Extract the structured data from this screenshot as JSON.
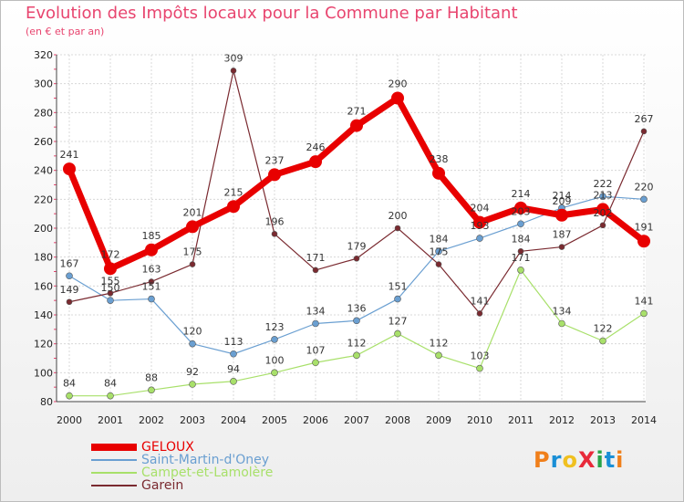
{
  "header": {
    "title": "Evolution des Impôts locaux pour la Commune par Habitant",
    "subtitle": "(en € et par an)"
  },
  "colors": {
    "title": "#e8456f",
    "GELOUX": "#e80000",
    "Saint-Martin-d'Oney": "#6a9fd1",
    "Campet-et-Lamolère": "#a8e06a",
    "Garein": "#7a2a30"
  },
  "logo": {
    "text": "ProXiti",
    "letter_colors": [
      "#f07f1a",
      "#1a8fd6",
      "#f0c020",
      "#e82a3a",
      "#27a348",
      "#1a8fd6",
      "#f07f1a"
    ]
  },
  "chart_data": {
    "type": "line",
    "x": [
      "2000",
      "2001",
      "2002",
      "2003",
      "2004",
      "2005",
      "2006",
      "2007",
      "2008",
      "2009",
      "2010",
      "2011",
      "2012",
      "2013",
      "2014"
    ],
    "ylim": [
      80,
      320
    ],
    "yticks": [
      80,
      100,
      120,
      140,
      160,
      180,
      200,
      220,
      240,
      260,
      280,
      300,
      320
    ],
    "grid": true,
    "legend_position": "bottom-left",
    "series": [
      {
        "name": "GELOUX",
        "values": [
          241,
          172,
          185,
          201,
          215,
          237,
          246,
          271,
          290,
          238,
          204,
          214,
          209,
          213,
          191
        ]
      },
      {
        "name": "Saint-Martin-d'Oney",
        "values": [
          167,
          150,
          151,
          120,
          113,
          123,
          134,
          136,
          151,
          184,
          193,
          203,
          214,
          222,
          220
        ]
      },
      {
        "name": "Campet-et-Lamolère",
        "values": [
          84,
          84,
          88,
          92,
          94,
          100,
          107,
          112,
          127,
          112,
          103,
          171,
          134,
          122,
          141
        ]
      },
      {
        "name": "Garein",
        "values": [
          149,
          155,
          163,
          175,
          309,
          196,
          171,
          179,
          200,
          175,
          141,
          184,
          187,
          202,
          267
        ]
      }
    ]
  }
}
